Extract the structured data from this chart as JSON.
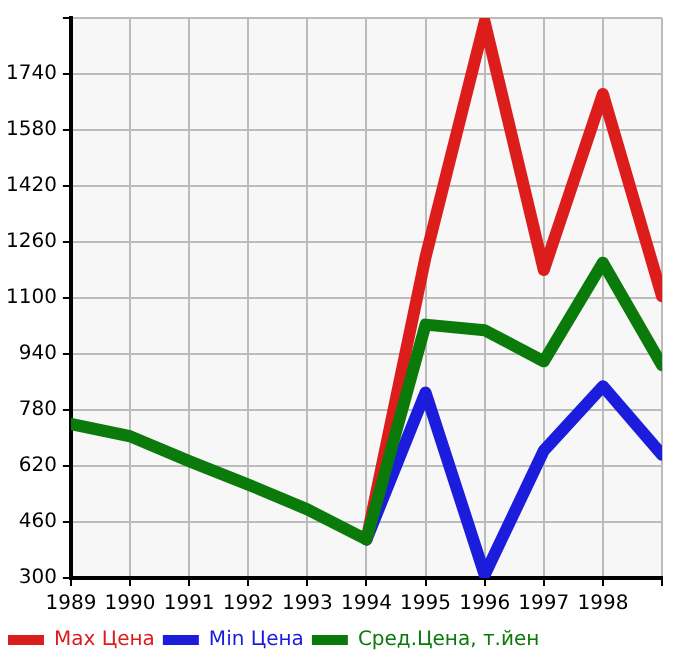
{
  "chart_data": {
    "type": "line",
    "x": [
      1989,
      1990,
      1991,
      1992,
      1993,
      1994,
      1995,
      1996,
      1997,
      1998,
      1999
    ],
    "series": [
      {
        "name": "Max Цена",
        "color": "#dd1c1c",
        "values": [
          null,
          null,
          null,
          null,
          null,
          410,
          1217,
          1889,
          1180,
          1683,
          1105
        ]
      },
      {
        "name": "Min Цена",
        "color": "#1c1cdd",
        "values": [
          null,
          null,
          null,
          null,
          null,
          410,
          830,
          309,
          664,
          848,
          652
        ]
      },
      {
        "name": "Сред.Цена, т.йен",
        "color": "#0a7a0a",
        "values": [
          740,
          705,
          634,
          567,
          496,
          410,
          1024,
          1008,
          919,
          1201,
          908
        ]
      }
    ],
    "xlim": [
      1989,
      1999
    ],
    "xticks": [
      1989,
      1990,
      1991,
      1992,
      1993,
      1994,
      1995,
      1996,
      1997,
      1998,
      {
        "value": 1999,
        "label": null
      }
    ],
    "ylim": [
      300,
      1900
    ],
    "yticks": [
      300,
      460,
      620,
      780,
      940,
      1100,
      1260,
      1420,
      1580,
      1740,
      {
        "value": 1900,
        "label": null
      }
    ],
    "grid": true,
    "legend": "bottom",
    "marker": "none",
    "line_style": "solid"
  }
}
